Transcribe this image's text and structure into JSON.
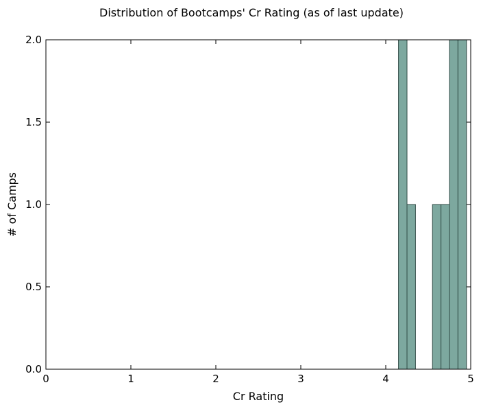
{
  "chart_data": {
    "type": "bar",
    "title": "Distribution of Bootcamps' Cr Rating (as of last update)",
    "xlabel": "Cr Rating",
    "ylabel": "# of Camps",
    "xlim": [
      0,
      5
    ],
    "ylim": [
      0,
      2
    ],
    "xticks": [
      "0",
      "1",
      "2",
      "3",
      "4",
      "5"
    ],
    "yticks": [
      "0.0",
      "0.5",
      "1.0",
      "1.5",
      "2.0"
    ],
    "grid": false,
    "legend": "none",
    "bar_color": "#7da89f",
    "edge_color": "#2f4a45",
    "bins": [
      {
        "start": 4.15,
        "end": 4.25,
        "count": 2
      },
      {
        "start": 4.25,
        "end": 4.35,
        "count": 1
      },
      {
        "start": 4.55,
        "end": 4.65,
        "count": 1
      },
      {
        "start": 4.65,
        "end": 4.75,
        "count": 1
      },
      {
        "start": 4.75,
        "end": 4.85,
        "count": 2
      },
      {
        "start": 4.85,
        "end": 4.95,
        "count": 2
      }
    ]
  }
}
